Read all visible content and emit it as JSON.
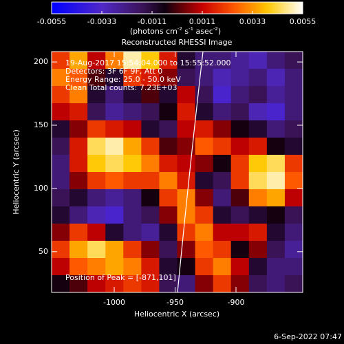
{
  "chart_data": {
    "type": "heatmap",
    "title": "Reconstructed RHESSI Image",
    "xlabel": "Heliocentric X (arcsec)",
    "ylabel": "Heliocentric Y (arcsec)",
    "xlim": [
      -1051.4,
      -845.2
    ],
    "ylim": [
      17.8,
      208.2
    ],
    "xticks": [
      -1000,
      -950,
      -900
    ],
    "yticks": [
      50,
      100,
      150,
      200
    ],
    "zlim": [
      -0.0055,
      0.0055
    ],
    "zticks": [
      -0.0055,
      -0.0033,
      -0.0011,
      0.0011,
      0.0033,
      0.0055
    ],
    "colorbar_label": [
      "(photons cm",
      "-2",
      " s",
      "-1",
      " asec",
      "-2",
      ")"
    ],
    "annotations": [
      "19-Aug-2017 15:54:04.000 to 15:55:52.000",
      "Detectors: 3F 6F 9F, Att 0",
      "Energy Range: 25.0 - 50.0 keV",
      "Clean    Total counts: 7.23E+03"
    ],
    "peak_label": "Position of Peak = [-871,101]",
    "footer": "6-Sep-2022 07:47",
    "z": [
      [
        0.002,
        0.0035,
        0.001,
        0.003,
        0.005,
        0.004,
        0.0015,
        -0.001,
        -0.002,
        -0.002,
        -0.0025,
        -0.003,
        -0.002,
        -0.0015
      ],
      [
        0.003,
        0.0025,
        0,
        -0.001,
        0.002,
        0.0015,
        0.0005,
        -0.0015,
        -0.002,
        -0.003,
        -0.0025,
        -0.002,
        -0.003,
        -0.002
      ],
      [
        0.002,
        0.003,
        -0.001,
        -0.002,
        -0.001,
        0,
        -0.001,
        0.001,
        -0.0015,
        -0.0035,
        -0.002,
        -0.0015,
        -0.0025,
        -0.002
      ],
      [
        0.001,
        0.0015,
        -0.0015,
        -0.0025,
        -0.002,
        -0.0015,
        -0.0005,
        0.0015,
        -0.001,
        -0.002,
        -0.0015,
        -0.003,
        -0.0035,
        -0.002
      ],
      [
        -0.001,
        0.0005,
        0.002,
        0.0015,
        0.001,
        -0.001,
        -0.0015,
        0.001,
        0.0015,
        0.0005,
        -0.0005,
        -0.001,
        -0.002,
        -0.0015
      ],
      [
        -0.0015,
        0.0015,
        0.0045,
        0.005,
        0.0035,
        0.002,
        0,
        0.0005,
        0.0025,
        0.002,
        0.001,
        0.0015,
        -0.0005,
        -0.001
      ],
      [
        -0.002,
        0.0015,
        0.004,
        0.0045,
        0.004,
        0.003,
        0.0015,
        0.001,
        0.0005,
        -0.0005,
        0.002,
        0.004,
        0.0045,
        0.002
      ],
      [
        -0.002,
        0.0005,
        0.002,
        0.0025,
        0.002,
        0.002,
        0.003,
        0.0015,
        -0.001,
        -0.0015,
        0.002,
        0.0045,
        0.005,
        0.0025
      ],
      [
        -0.0015,
        -0.001,
        -0.002,
        -0.0025,
        -0.002,
        -0.0005,
        0.002,
        0.003,
        0.0005,
        -0.002,
        0,
        0.003,
        0.0035,
        0.001
      ],
      [
        -0.001,
        -0.002,
        -0.003,
        -0.0035,
        -0.002,
        -0.0015,
        0.0005,
        0.003,
        0.002,
        -0.001,
        -0.0015,
        -0.001,
        -0.0005,
        -0.0015
      ],
      [
        0.0005,
        0.002,
        0.001,
        -0.001,
        -0.002,
        -0.0025,
        -0.001,
        0.002,
        0.003,
        0.001,
        0.001,
        0.0015,
        -0.001,
        -0.002
      ],
      [
        0.002,
        0.0035,
        0.0045,
        0.0035,
        0.002,
        0.0005,
        -0.0015,
        0.0005,
        0.0025,
        0.002,
        -0.0005,
        0.0005,
        -0.0015,
        -0.0025
      ],
      [
        0.001,
        0.0025,
        0.003,
        0.0035,
        0.003,
        0.0015,
        -0.001,
        -0.0005,
        0.002,
        0.003,
        0.001,
        -0.001,
        -0.002,
        -0.002
      ],
      [
        -0.0005,
        0,
        0.001,
        0.0015,
        0.002,
        0.0015,
        -0.0015,
        -0.002,
        0.0005,
        0.002,
        0.0005,
        -0.0015,
        -0.002,
        -0.0015
      ]
    ]
  }
}
